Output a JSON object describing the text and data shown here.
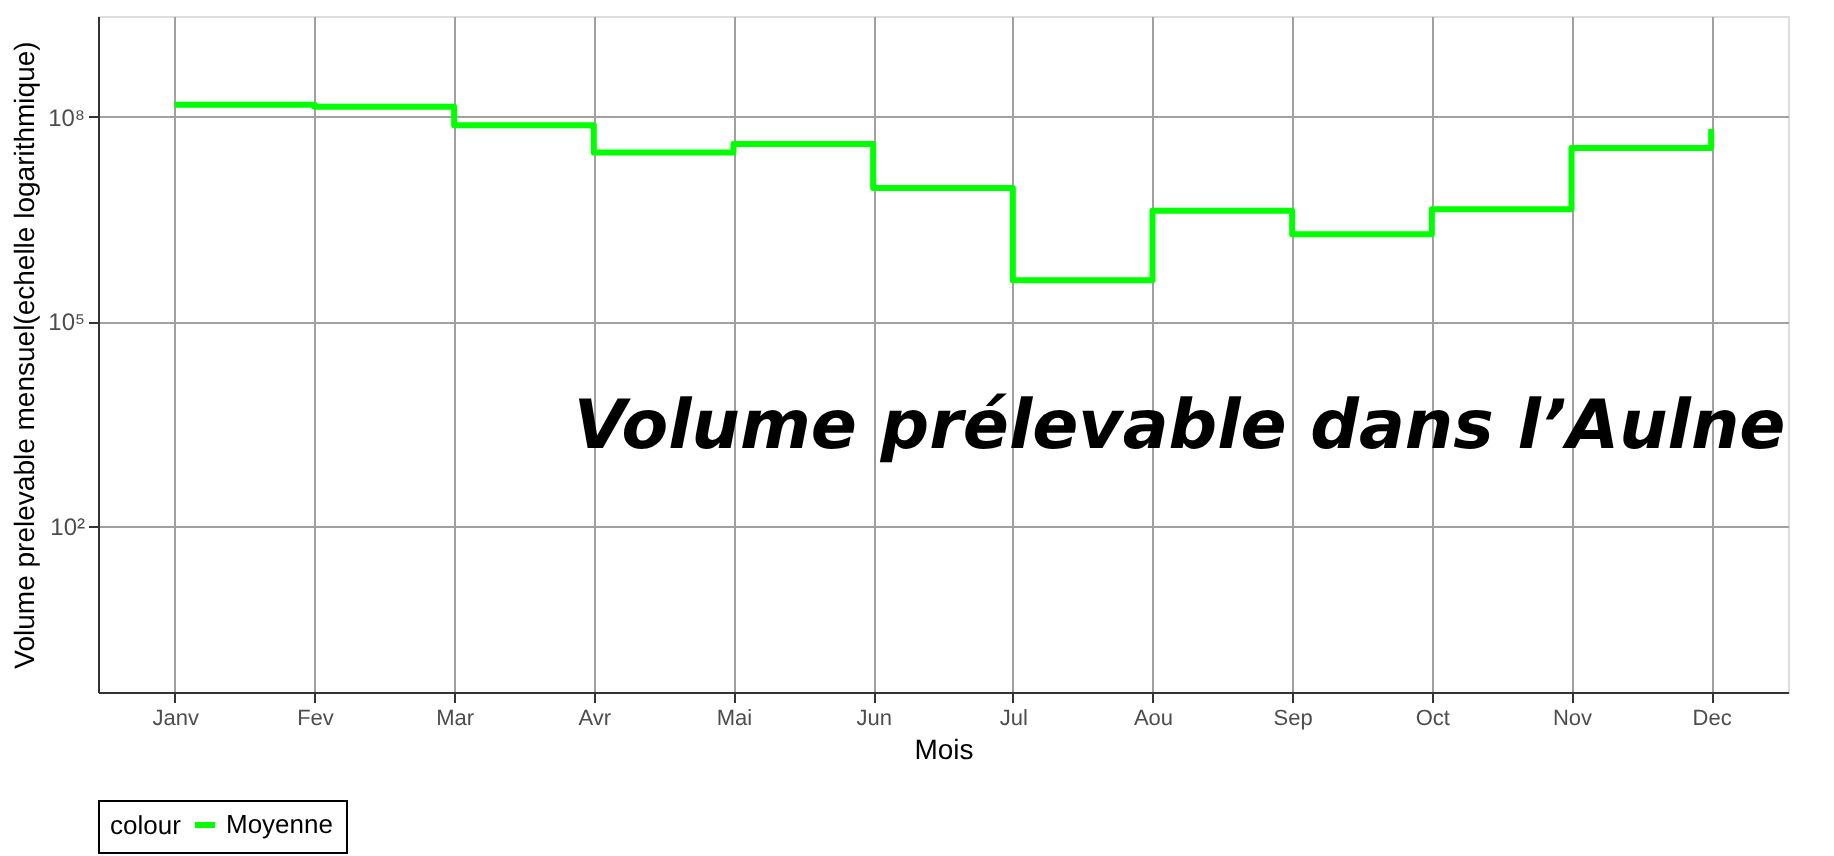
{
  "chart_data": {
    "type": "step",
    "xlabel": "Mois",
    "ylabel": "Volume prelevable mensuel(echelle logarithmique)",
    "legend_title": "colour",
    "legend": "bottom",
    "log": "y",
    "grid": true,
    "categories": [
      "Janv",
      "Fev",
      "Mar",
      "Avr",
      "Mai",
      "Jun",
      "Jul",
      "Aou",
      "Sep",
      "Oct",
      "Nov",
      "Dec"
    ],
    "series": [
      {
        "name": "Moyenne",
        "color": "#00ff00",
        "values": [
          150000000,
          140000000,
          75000000,
          30000000,
          40000000,
          9000000,
          400000,
          4200000,
          1900000,
          4400000,
          35000000,
          66000000
        ]
      }
    ],
    "ylim": [
      0.37,
      3000000000
    ],
    "yticks": [
      {
        "value": 100,
        "label": "10²"
      },
      {
        "value": 100000,
        "label": "10⁵"
      },
      {
        "value": 100000000,
        "label": "10⁸"
      }
    ],
    "annotations": [
      "Volume prélevable dans l’Aulne"
    ]
  }
}
